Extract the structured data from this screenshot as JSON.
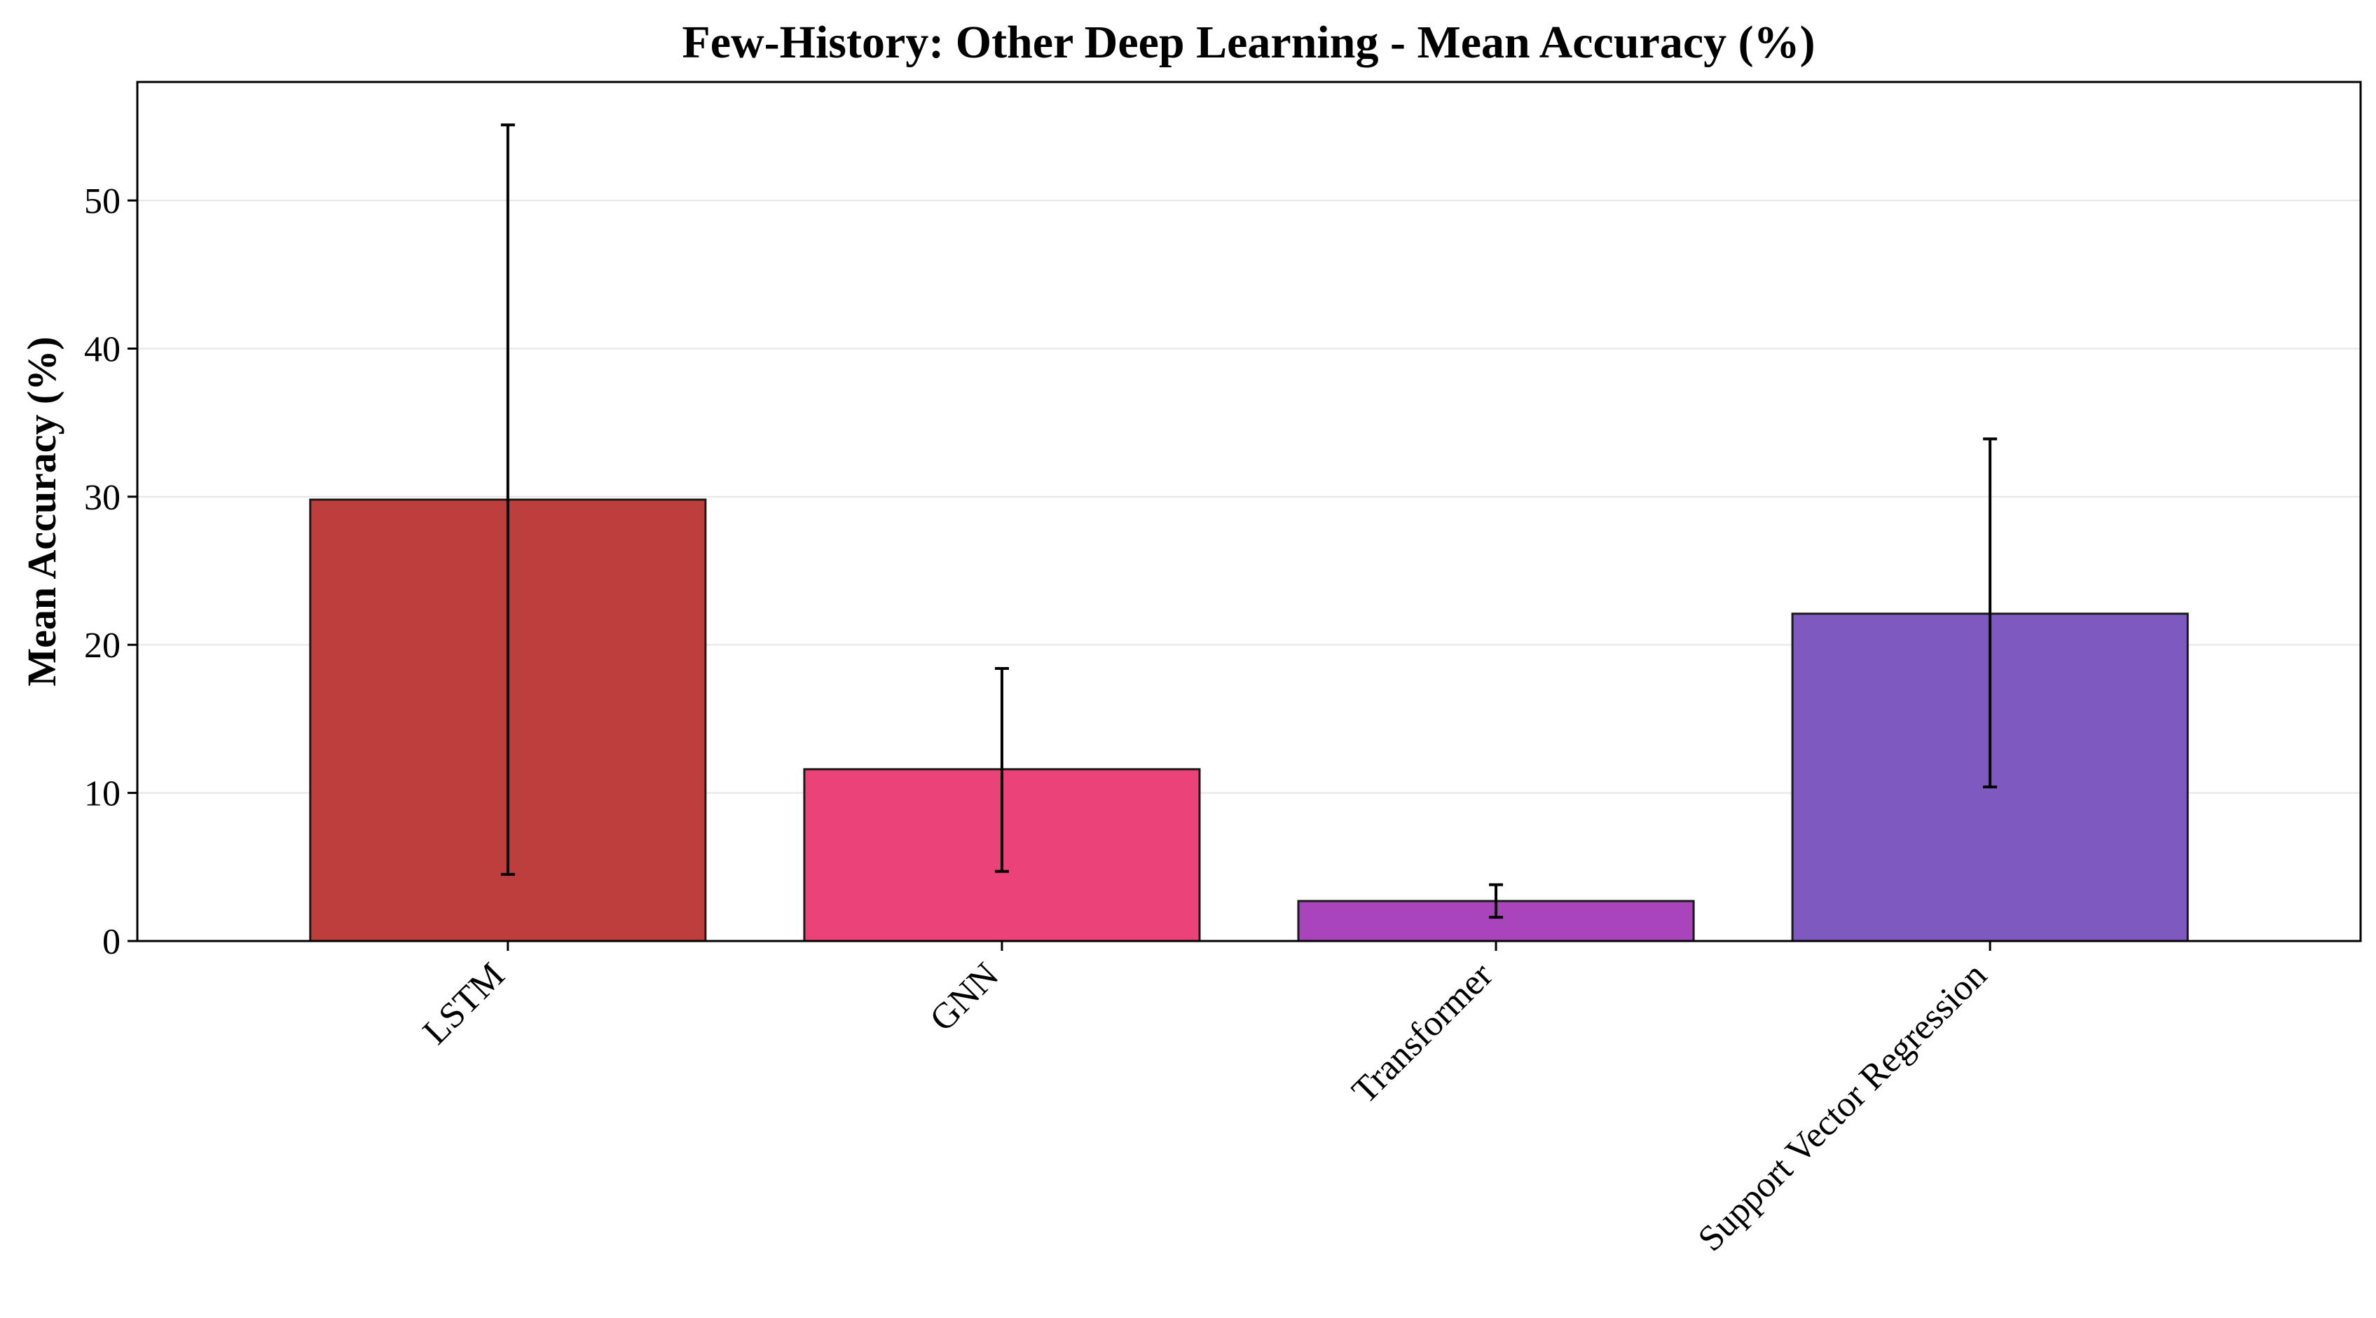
{
  "chart_data": {
    "type": "bar",
    "title": "Few-History: Other Deep Learning - Mean Accuracy (%)",
    "xlabel": "",
    "ylabel": "Mean Accuracy (%)",
    "ylim": [
      0,
      58
    ],
    "yticks": [
      0,
      10,
      20,
      30,
      40,
      50
    ],
    "grid": "y",
    "categories": [
      "LSTM",
      "GNN",
      "Transformer",
      "Support Vector Regression"
    ],
    "values": [
      29.8,
      11.6,
      2.7,
      22.1
    ],
    "error_low": [
      4.5,
      4.7,
      1.6,
      10.4
    ],
    "error_high": [
      55.1,
      18.4,
      3.8,
      33.9
    ],
    "colors": [
      "#be3e3e",
      "#eb4379",
      "#a944bd",
      "#7e59c0"
    ],
    "edge_color": "#1a1a1a"
  }
}
